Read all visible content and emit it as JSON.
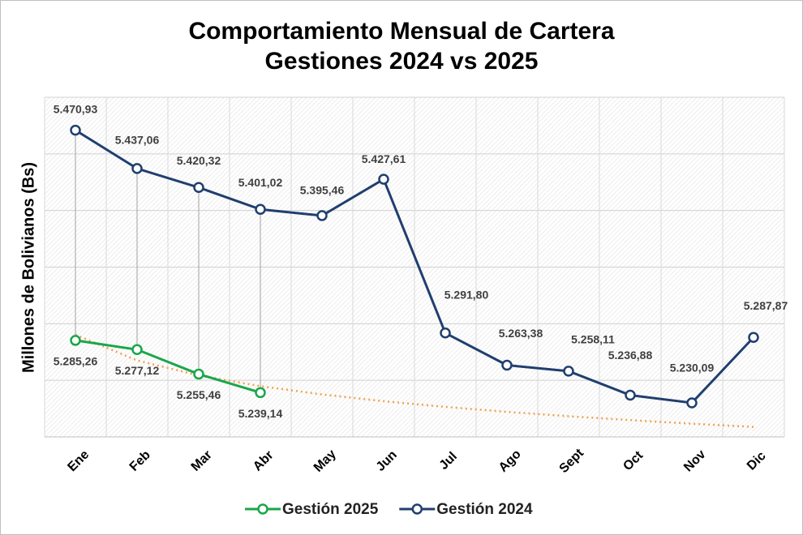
{
  "chart_data": {
    "type": "line",
    "title": [
      "Comportamiento Mensual de Cartera",
      "Gestiones 2024 vs 2025"
    ],
    "y_label": "Millones  de Bolivianos (Bs)",
    "categories": [
      "Ene",
      "Feb",
      "Mar",
      "Abr",
      "May",
      "Jun",
      "Jul",
      "Ago",
      "Sept",
      "Oct",
      "Nov",
      "Dic"
    ],
    "series": [
      {
        "name": "Gestión 2025",
        "color": "#1aa64a",
        "values": [
          5285.26,
          5277.12,
          5255.46,
          5239.14,
          null,
          null,
          null,
          null,
          null,
          null,
          null,
          null
        ],
        "value_labels": [
          "5.285,26",
          "5.277,12",
          "5.255,46",
          "5.239,14",
          null,
          null,
          null,
          null,
          null,
          null,
          null,
          null
        ],
        "trendline": {
          "type": "log",
          "color": "#f0a050"
        }
      },
      {
        "name": "Gestión 2024",
        "color": "#203f6e",
        "values": [
          5470.93,
          5437.06,
          5420.32,
          5401.02,
          5395.46,
          5427.61,
          5291.8,
          5263.38,
          5258.11,
          5236.88,
          5230.09,
          5287.87
        ],
        "value_labels": [
          "5.470,93",
          "5.437,06",
          "5.420,32",
          "5.401,02",
          "5.395,46",
          "5.427,61",
          "5.291,80",
          "5.263,38",
          "5.258,11",
          "5.236,88",
          "5.230,09",
          "5.287,87"
        ]
      }
    ],
    "ylim": [
      5200,
      5500
    ],
    "yticks": [
      5200,
      5250,
      5300,
      5350,
      5400,
      5450,
      5500
    ],
    "grid": true,
    "high_low_lines": true,
    "legend": "bottom"
  }
}
